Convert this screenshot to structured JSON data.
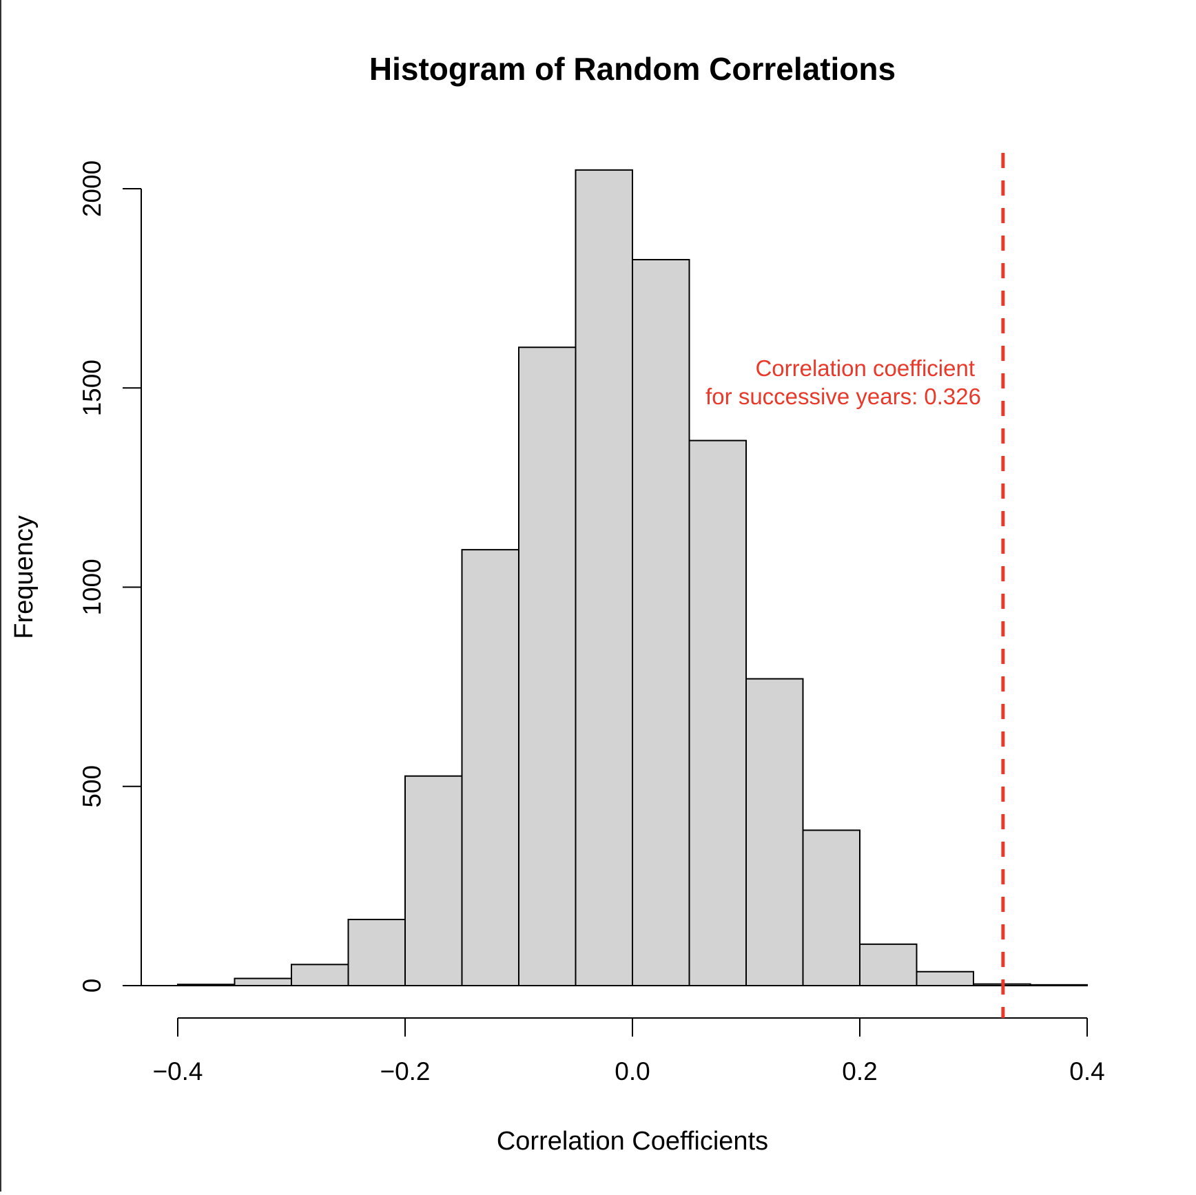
{
  "chart_data": {
    "type": "bar",
    "title": "Histogram of Random Correlations",
    "xlabel": "Correlation Coefficients",
    "ylabel": "Frequency",
    "xlim": [
      -0.4,
      0.4
    ],
    "ylim": [
      0,
      2000
    ],
    "bin_width": 0.05,
    "bins": [
      {
        "start": -0.4,
        "end": -0.35,
        "count": 3
      },
      {
        "start": -0.35,
        "end": -0.3,
        "count": 18
      },
      {
        "start": -0.3,
        "end": -0.25,
        "count": 53
      },
      {
        "start": -0.25,
        "end": -0.2,
        "count": 166
      },
      {
        "start": -0.2,
        "end": -0.15,
        "count": 526
      },
      {
        "start": -0.15,
        "end": -0.1,
        "count": 1094
      },
      {
        "start": -0.1,
        "end": -0.05,
        "count": 1602
      },
      {
        "start": -0.05,
        "end": 0.0,
        "count": 2047
      },
      {
        "start": 0.0,
        "end": 0.05,
        "count": 1822
      },
      {
        "start": 0.05,
        "end": 0.1,
        "count": 1368
      },
      {
        "start": 0.1,
        "end": 0.15,
        "count": 770
      },
      {
        "start": 0.15,
        "end": 0.2,
        "count": 390
      },
      {
        "start": 0.2,
        "end": 0.25,
        "count": 104
      },
      {
        "start": 0.25,
        "end": 0.3,
        "count": 35
      },
      {
        "start": 0.3,
        "end": 0.35,
        "count": 4
      },
      {
        "start": 0.35,
        "end": 0.4,
        "count": 2
      }
    ],
    "x_ticks": [
      -0.4,
      -0.2,
      0.0,
      0.2,
      0.4
    ],
    "x_tick_labels": [
      "−0.4",
      "−0.2",
      "0.0",
      "0.2",
      "0.4"
    ],
    "y_ticks": [
      0,
      500,
      1000,
      1500,
      2000
    ],
    "y_tick_labels": [
      "0",
      "500",
      "1000",
      "1500",
      "2000"
    ],
    "reference_line": {
      "x": 0.326,
      "style": "dashed",
      "color": "#e8392b"
    },
    "annotation": {
      "lines": [
        "Correlation coefficient",
        "for successive years: 0.326"
      ],
      "color": "#e8392b"
    },
    "bar_fill": "#d3d3d3",
    "bar_stroke": "#000000",
    "grid": false,
    "legend": "none"
  }
}
